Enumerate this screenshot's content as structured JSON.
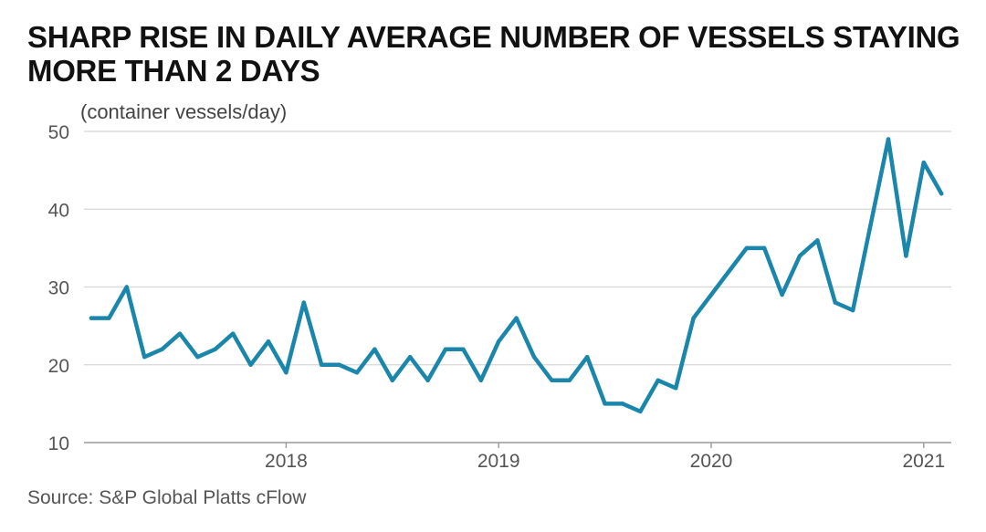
{
  "chart_data": {
    "type": "line",
    "title": "SHARP RISE IN DAILY AVERAGE NUMBER OF VESSELS STAYING MORE THAN 2 DAYS",
    "ylabel": "(container vessels/day)",
    "source": "Source: S&P Global Platts cFlow",
    "ylim": [
      10,
      50
    ],
    "yticks": [
      10,
      20,
      30,
      40,
      50
    ],
    "xlim": [
      "2017-02",
      "2021-03"
    ],
    "xticks": [
      {
        "label": "2018",
        "date": "2018-01"
      },
      {
        "label": "2019",
        "date": "2019-01"
      },
      {
        "label": "2020",
        "date": "2020-01"
      },
      {
        "label": "2021",
        "date": "2021-01"
      }
    ],
    "grid": "horizontal",
    "color": "#1b86ab",
    "series": [
      {
        "x": [
          "2017-02",
          "2017-03",
          "2017-04",
          "2017-05",
          "2017-06",
          "2017-07",
          "2017-08",
          "2017-09",
          "2017-10",
          "2017-11",
          "2017-12",
          "2018-01",
          "2018-02",
          "2018-03",
          "2018-04",
          "2018-05",
          "2018-06",
          "2018-07",
          "2018-08",
          "2018-09",
          "2018-10",
          "2018-11",
          "2018-12",
          "2019-01",
          "2019-02",
          "2019-03",
          "2019-04",
          "2019-05",
          "2019-06",
          "2019-07",
          "2019-08",
          "2019-09",
          "2019-10",
          "2019-11",
          "2019-12",
          "2020-01",
          "2020-02",
          "2020-03",
          "2020-04",
          "2020-05",
          "2020-06",
          "2020-07",
          "2020-08",
          "2020-09",
          "2020-10",
          "2020-11",
          "2020-12",
          "2021-01",
          "2021-02"
        ],
        "values": [
          26,
          26,
          30,
          21,
          22,
          24,
          21,
          22,
          24,
          20,
          23,
          19,
          28,
          20,
          20,
          19,
          22,
          18,
          21,
          18,
          22,
          22,
          18,
          23,
          26,
          21,
          18,
          18,
          21,
          15,
          15,
          14,
          18,
          17,
          26,
          29,
          32,
          35,
          35,
          29,
          34,
          36,
          28,
          27,
          38,
          49,
          34,
          46,
          42
        ]
      }
    ]
  }
}
